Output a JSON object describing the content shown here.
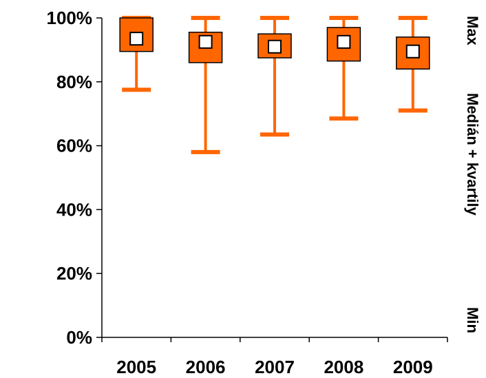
{
  "chart_data": {
    "type": "boxplot",
    "categories": [
      "2005",
      "2006",
      "2007",
      "2008",
      "2009"
    ],
    "series": [
      {
        "min": [
          77.5,
          58,
          63.5,
          68.5,
          71
        ],
        "q1": [
          89.5,
          86,
          87.5,
          86.5,
          84
        ],
        "median": [
          93.5,
          92.5,
          91,
          92.5,
          89.5
        ],
        "q3": [
          100,
          95.5,
          95,
          97,
          94
        ],
        "max": [
          100,
          100,
          100,
          100,
          100
        ]
      }
    ],
    "ylim": [
      0,
      100
    ],
    "y_ticks": [
      "0%",
      "20%",
      "40%",
      "60%",
      "80%",
      "100%"
    ],
    "right_labels": {
      "max": "Max",
      "median_quartiles": "Medián + kvartily",
      "min": "Min"
    },
    "grid": false,
    "colors": {
      "box": "#ff6600",
      "box_edge": "#000000",
      "whisker": "#ff6600",
      "median_marker_fill": "#ffffff",
      "median_marker_edge": "#000000",
      "axis": "#000000"
    }
  }
}
